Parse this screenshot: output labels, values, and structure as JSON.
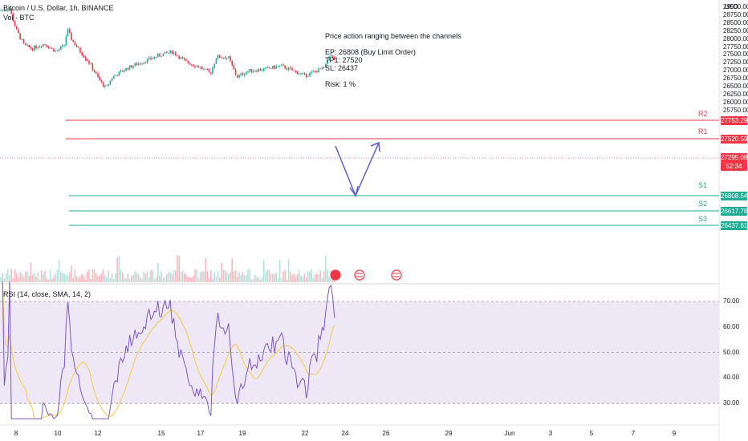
{
  "header": {
    "symbol_title": "Bitcoin / U.S. Dollar, 1h, BINANCE",
    "volume_label": "Vol · BTC",
    "currency": "USD"
  },
  "annotation": {
    "line1": "Price action ranging between the channels",
    "line2": "EP: 26808 (Buy Limit Order)",
    "line3": "TP1: 27520",
    "line4": "SL: 26437",
    "line5": "Risk: 1 %"
  },
  "levels": {
    "r2": {
      "label": "R2",
      "value": "27753.29",
      "color": "#f23645"
    },
    "r1": {
      "label": "R1",
      "value": "27520.59",
      "color": "#f23645"
    },
    "s1": {
      "label": "S1",
      "value": "26808.54",
      "color": "#22ab94"
    },
    "s2": {
      "label": "S2",
      "value": "26617.78",
      "color": "#22ab94"
    },
    "s3": {
      "label": "S3",
      "value": "26437.61",
      "color": "#22ab94"
    }
  },
  "last_price": {
    "value": "27295.08",
    "countdown": "52:34",
    "color": "#f23645"
  },
  "price_axis": [
    "29000.00",
    "28750.00",
    "28500.00",
    "28250.00",
    "28000.00",
    "27750.00",
    "27500.00",
    "27250.00",
    "27000.00",
    "26750.00",
    "26500.00",
    "26250.00",
    "26000.00",
    "25750.00"
  ],
  "rsi": {
    "label": "RSI (14, close, SMA, 14, 2)",
    "axis": [
      "70.00",
      "60.00",
      "50.00",
      "40.00",
      "30.00"
    ],
    "line_color": "#7e57c2",
    "ma_color": "#f7c948",
    "band_color": "#ede7f6"
  },
  "time_axis": [
    "8",
    "10",
    "12",
    "15",
    "17",
    "19",
    "22",
    "24",
    "26",
    "29",
    "Jun",
    "3",
    "5",
    "7",
    "9"
  ],
  "colors": {
    "up": "#22ab94",
    "down": "#f23645",
    "arrow": "#5b5fc7"
  }
}
